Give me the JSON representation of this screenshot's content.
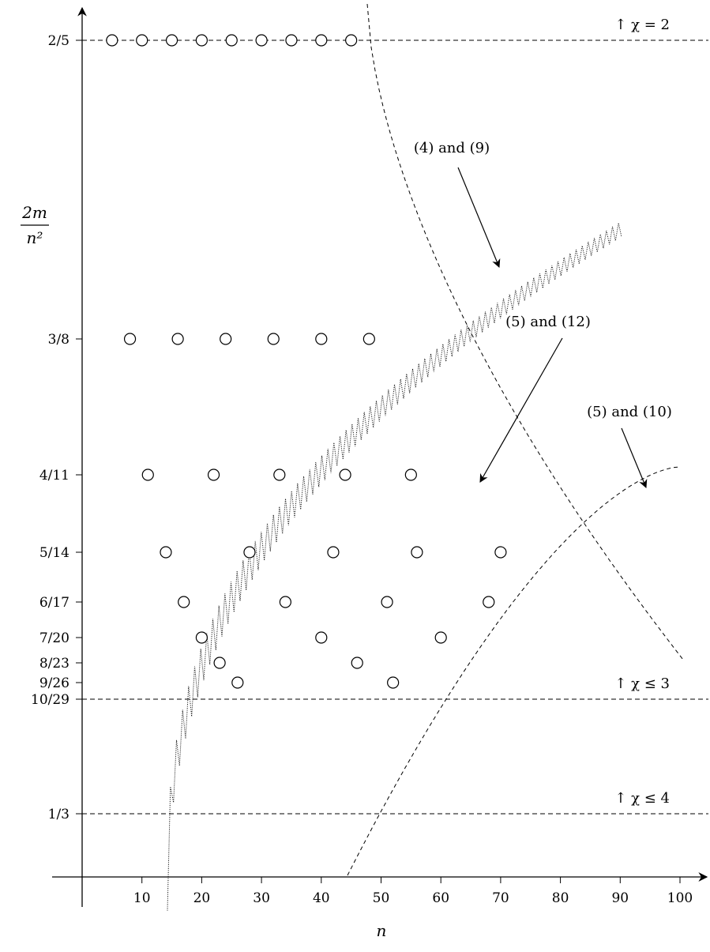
{
  "chart_data": {
    "type": "scatter",
    "xlabel": "n",
    "ylabel": {
      "numerator": "2m",
      "denominator": "n²"
    },
    "xlim": [
      0,
      100
    ],
    "x_ticks": [
      10,
      20,
      30,
      40,
      50,
      60,
      70,
      80,
      90,
      100
    ],
    "y_ticks": [
      {
        "label": "2/5",
        "value": 0.4
      },
      {
        "label": "3/8",
        "value": 0.375
      },
      {
        "label": "4/11",
        "value": 0.36364
      },
      {
        "label": "5/14",
        "value": 0.35714
      },
      {
        "label": "6/17",
        "value": 0.35294
      },
      {
        "label": "7/20",
        "value": 0.35
      },
      {
        "label": "8/23",
        "value": 0.34783
      },
      {
        "label": "9/26",
        "value": 0.34615
      },
      {
        "label": "10/29",
        "value": 0.34483
      },
      {
        "label": "1/3",
        "value": 0.33333
      }
    ],
    "points": [
      {
        "y_label": "2/5",
        "x": [
          5,
          10,
          15,
          20,
          25,
          30,
          35,
          40,
          45
        ]
      },
      {
        "y_label": "3/8",
        "x": [
          8,
          16,
          24,
          32,
          40,
          48
        ]
      },
      {
        "y_label": "4/11",
        "x": [
          11,
          22,
          33,
          44,
          55
        ]
      },
      {
        "y_label": "5/14",
        "x": [
          14,
          28,
          42,
          56,
          70
        ]
      },
      {
        "y_label": "6/17",
        "x": [
          17,
          34,
          51,
          68
        ]
      },
      {
        "y_label": "7/20",
        "x": [
          20,
          40,
          60
        ]
      },
      {
        "y_label": "8/23",
        "x": [
          23,
          46
        ]
      },
      {
        "y_label": "9/26",
        "x": [
          26,
          52
        ]
      }
    ],
    "thresholds": [
      {
        "y_label": "2/5",
        "text": "↑ χ = 2"
      },
      {
        "y_label": "10/29",
        "text": "↑ χ ≤ 3"
      },
      {
        "y_label": "1/3",
        "text": "↑ χ ≤ 4"
      }
    ],
    "curves": [
      {
        "label": "(4) and (9)",
        "style": "dotted zigzag"
      },
      {
        "label": "(5) and (12)",
        "style": "dashed"
      },
      {
        "label": "(5) and (10)",
        "style": "dashed"
      }
    ]
  }
}
